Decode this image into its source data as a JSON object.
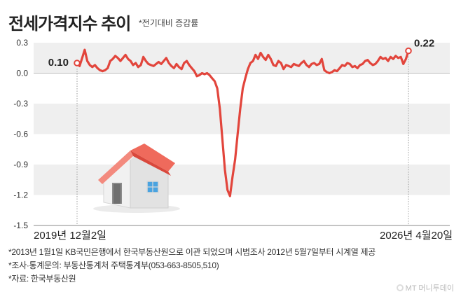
{
  "title": "전세가격지수 추이",
  "subtitle": "*전기대비 증감률",
  "notes": [
    "*2013년 1월1일 KB국민은행에서 한국부동산원으로 이관 되었으며 시범조사 2012년 5월7일부터 시계열 제공",
    "*조사·통계문의: 부동산통계처 주택통계부(053-663-8505,510)",
    "*자료: 한국부동산원"
  ],
  "brand": "MT 머니투데이",
  "colors": {
    "line": "#e2453c",
    "band": "#efefef",
    "house_roof": "#ef6a5c",
    "house_wall": "#e9e9e9"
  },
  "chart_data": {
    "type": "line",
    "title": "전세가격지수 추이",
    "subtitle": "*전기대비 증감률",
    "xlabel": "",
    "ylabel": "",
    "ylim": [
      -1.5,
      0.3
    ],
    "yticks": [
      0.3,
      0.0,
      -0.3,
      -0.6,
      -0.9,
      -1.2,
      -1.5
    ],
    "ytick_labels": [
      "0.3",
      "0.0",
      "-0.3",
      "-0.6",
      "-0.9",
      "-1.2",
      "-1.5"
    ],
    "xtick_labels": [
      "2019년 12월2일",
      "2026년 4월20일"
    ],
    "start_label": "0.10",
    "end_label": "0.22",
    "grid": "alternating horizontal bands",
    "series": [
      {
        "values": [
          0.1,
          0.07,
          0.15,
          0.23,
          0.12,
          0.08,
          0.06,
          0.08,
          0.05,
          0.03,
          0.02,
          0.03,
          0.05,
          0.12,
          0.14,
          0.17,
          0.15,
          0.12,
          0.15,
          0.18,
          0.14,
          0.12,
          0.08,
          0.1,
          0.06,
          0.08,
          0.16,
          0.12,
          0.09,
          0.08,
          0.07,
          0.09,
          0.11,
          0.09,
          0.12,
          0.15,
          0.1,
          0.07,
          0.05,
          0.09,
          0.06,
          0.04,
          0.1,
          0.12,
          0.08,
          0.05,
          0.02,
          -0.03,
          -0.02,
          0.0,
          -0.01,
          0.0,
          -0.02,
          -0.05,
          -0.08,
          -0.15,
          -0.35,
          -0.65,
          -0.95,
          -1.15,
          -1.21,
          -1.02,
          -0.85,
          -0.6,
          -0.35,
          -0.15,
          -0.05,
          0.04,
          0.1,
          0.12,
          0.18,
          0.14,
          0.2,
          0.16,
          0.13,
          0.18,
          0.14,
          0.08,
          0.07,
          0.12,
          0.1,
          0.04,
          0.08,
          0.07,
          0.06,
          0.09,
          0.08,
          0.07,
          0.1,
          0.12,
          0.08,
          0.06,
          0.09,
          0.1,
          0.08,
          0.09,
          0.14,
          0.03,
          0.01,
          0.0,
          0.01,
          0.03,
          0.02,
          0.05,
          0.08,
          0.07,
          0.1,
          0.09,
          0.06,
          0.07,
          0.05,
          0.08,
          0.09,
          0.12,
          0.13,
          0.1,
          0.08,
          0.09,
          0.12,
          0.16,
          0.14,
          0.15,
          0.12,
          0.16,
          0.14,
          0.17,
          0.15,
          0.16,
          0.09,
          0.14,
          0.22
        ]
      }
    ]
  }
}
